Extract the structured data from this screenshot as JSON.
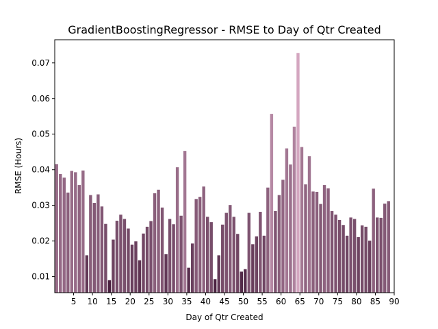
{
  "chart_data": {
    "type": "bar",
    "title": "GradientBoostingRegressor - RMSE to Day of Qtr Created",
    "xlabel": "Day of Qtr Created",
    "ylabel": "RMSE (Hours)",
    "xlim": [
      0,
      90
    ],
    "ylim": [
      0.0055,
      0.0765
    ],
    "xticks": [
      5,
      10,
      15,
      20,
      25,
      30,
      35,
      40,
      45,
      50,
      55,
      60,
      65,
      70,
      75,
      80,
      85,
      90
    ],
    "yticks": [
      0.01,
      0.02,
      0.03,
      0.04,
      0.05,
      0.06,
      0.07
    ],
    "ytick_labels": [
      "0.01",
      "0.02",
      "0.03",
      "0.04",
      "0.05",
      "0.06",
      "0.07"
    ],
    "color_light": "#d4a6c0",
    "color_dark": "#4a2140",
    "x": [
      0,
      1,
      2,
      3,
      4,
      5,
      6,
      7,
      8,
      9,
      10,
      11,
      12,
      13,
      14,
      15,
      16,
      17,
      18,
      19,
      20,
      21,
      22,
      23,
      24,
      25,
      26,
      27,
      28,
      29,
      30,
      31,
      32,
      33,
      34,
      35,
      36,
      37,
      38,
      39,
      40,
      41,
      42,
      43,
      44,
      45,
      46,
      47,
      48,
      49,
      50,
      51,
      52,
      53,
      54,
      55,
      56,
      57,
      58,
      59,
      60,
      61,
      62,
      63,
      64,
      65,
      66,
      67,
      68,
      69,
      70,
      71,
      72,
      73,
      74,
      75,
      76,
      77,
      78,
      79,
      80,
      81,
      82,
      83,
      84,
      85,
      86,
      87,
      88
    ],
    "values": [
      0.0416,
      0.0388,
      0.0378,
      0.0336,
      0.0397,
      0.0393,
      0.0357,
      0.0398,
      0.016,
      0.0329,
      0.0307,
      0.0331,
      0.0297,
      0.0248,
      0.009,
      0.0204,
      0.0257,
      0.0274,
      0.0262,
      0.0235,
      0.019,
      0.0199,
      0.0146,
      0.0221,
      0.024,
      0.0256,
      0.0334,
      0.0344,
      0.0294,
      0.0163,
      0.0262,
      0.0247,
      0.0407,
      0.0271,
      0.0453,
      0.0125,
      0.0193,
      0.0318,
      0.0324,
      0.0353,
      0.0268,
      0.0253,
      0.0093,
      0.016,
      0.0246,
      0.0279,
      0.0301,
      0.0268,
      0.022,
      0.0114,
      0.0121,
      0.0279,
      0.0191,
      0.0213,
      0.0282,
      0.0215,
      0.035,
      0.0557,
      0.0284,
      0.0329,
      0.0372,
      0.046,
      0.0415,
      0.0521,
      0.0728,
      0.0464,
      0.0359,
      0.0438,
      0.0339,
      0.0338,
      0.0304,
      0.0357,
      0.0348,
      0.0284,
      0.0274,
      0.0259,
      0.0245,
      0.0215,
      0.0266,
      0.0262,
      0.0211,
      0.0244,
      0.024,
      0.0201,
      0.0347,
      0.0266,
      0.0265,
      0.0305,
      0.0312
    ]
  }
}
